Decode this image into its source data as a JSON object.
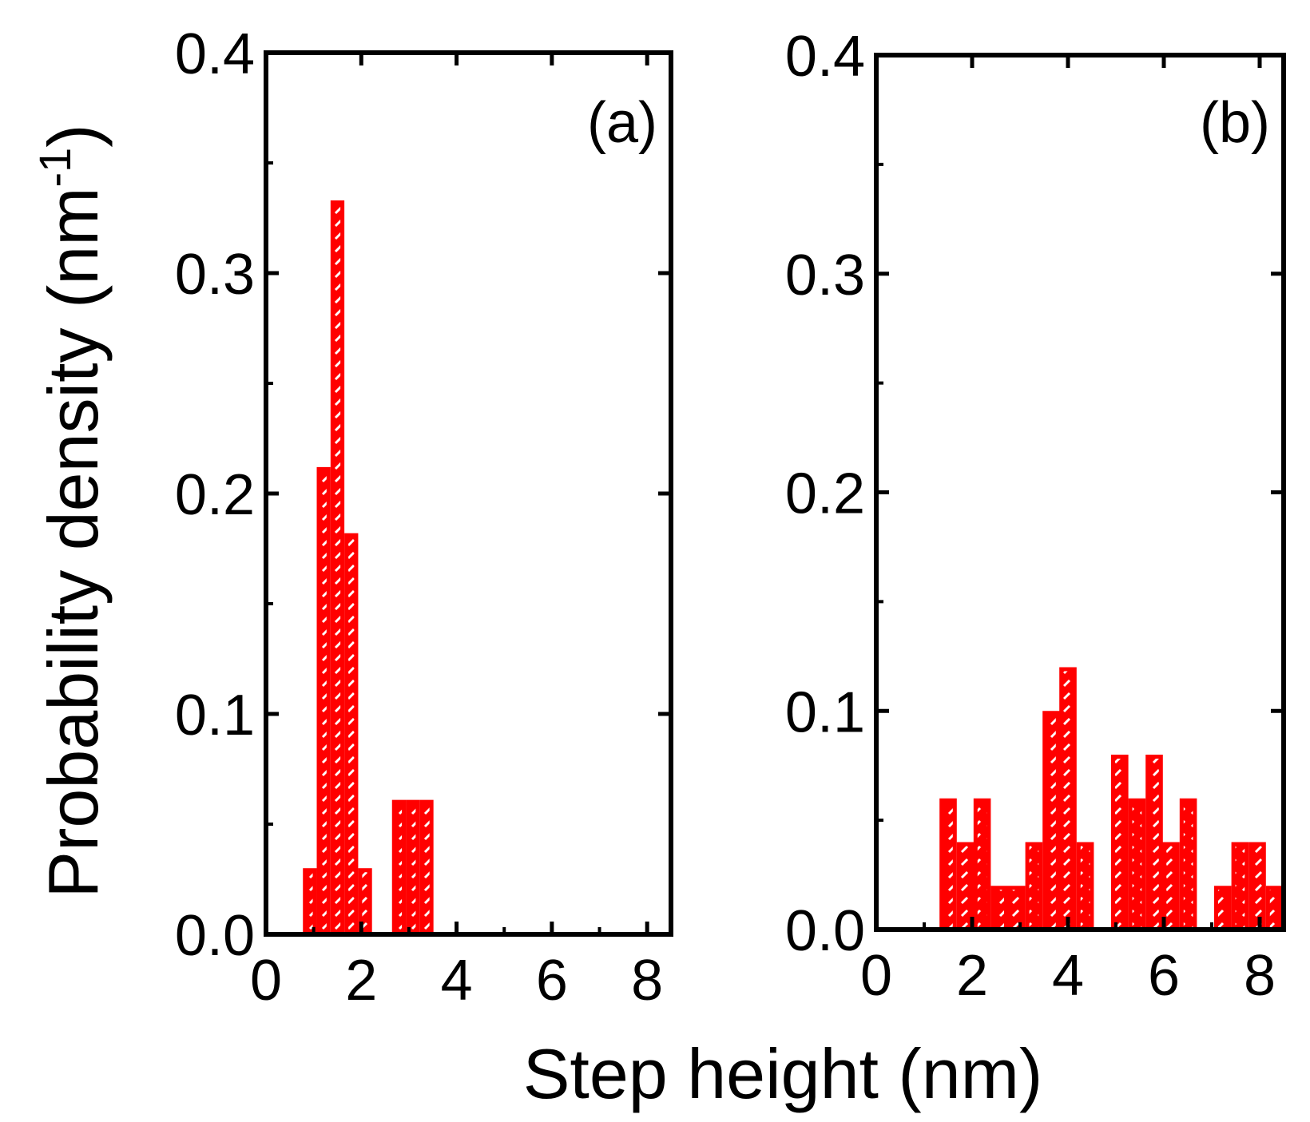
{
  "figure": {
    "ylabel": {
      "main": "Probability density (nm",
      "sup": "-1",
      "close": ")"
    },
    "xlabel": "Step height (nm)"
  },
  "colors": {
    "bar": "#ff0000",
    "hatch": "#ffffff",
    "axis": "#000000",
    "background": "#ffffff"
  },
  "chart_data": [
    {
      "type": "bar",
      "panel_label": "(a)",
      "title": "",
      "xlabel": "Step height (nm)",
      "ylabel": "Probability density (nm-1)",
      "xlim": [
        0,
        8.5
      ],
      "ylim": [
        0,
        0.4
      ],
      "bin_width": 0.29,
      "xticks": [
        0,
        2,
        4,
        6,
        8
      ],
      "xtick_labels": [
        "0",
        "2",
        "4",
        "6",
        "8"
      ],
      "yticks": [
        0.0,
        0.1,
        0.2,
        0.3,
        0.4
      ],
      "ytick_labels": [
        "0.0",
        "0.1",
        "0.2",
        "0.3",
        "0.4"
      ],
      "bin_centers": [
        0.92,
        1.21,
        1.5,
        1.79,
        2.08,
        2.79,
        3.08,
        3.37
      ],
      "values": [
        0.03,
        0.212,
        0.333,
        0.182,
        0.03,
        0.061,
        0.061,
        0.061
      ]
    },
    {
      "type": "bar",
      "panel_label": "(b)",
      "title": "",
      "xlabel": "Step height (nm)",
      "ylabel": "Probability density (nm-1)",
      "xlim": [
        0,
        8.5
      ],
      "ylim": [
        0,
        0.4
      ],
      "bin_width": 0.36,
      "xticks": [
        0,
        2,
        4,
        6,
        8
      ],
      "xtick_labels": [
        "0",
        "2",
        "4",
        "6",
        "8"
      ],
      "yticks": [
        0.0,
        0.1,
        0.2,
        0.3,
        0.4
      ],
      "ytick_labels": [
        "0.0",
        "0.1",
        "0.2",
        "0.3",
        "0.4"
      ],
      "bin_centers": [
        1.5,
        1.86,
        2.21,
        2.57,
        2.93,
        3.29,
        3.65,
        4.0,
        4.36,
        4.72,
        5.08,
        5.44,
        5.8,
        6.15,
        6.51,
        6.87,
        7.23,
        7.59,
        7.95,
        8.31
      ],
      "values": [
        0.06,
        0.04,
        0.06,
        0.02,
        0.02,
        0.04,
        0.1,
        0.12,
        0.04,
        0.0,
        0.08,
        0.06,
        0.08,
        0.04,
        0.06,
        0.0,
        0.02,
        0.04,
        0.04,
        0.02
      ]
    }
  ]
}
